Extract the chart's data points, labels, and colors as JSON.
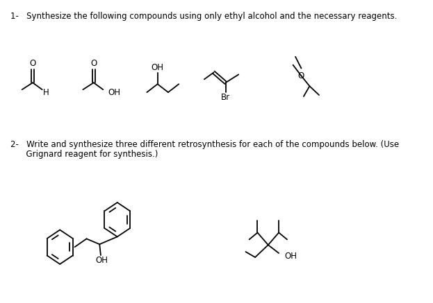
{
  "background_color": "#ffffff",
  "title1": "1-   Synthesize the following compounds using only ethyl alcohol and the necessary reagents.",
  "title2_line1": "2-   Write and synthesize three different retrosynthesis for each of the compounds below. (Use",
  "title2_line2": "      Grignard reagent for synthesis.)",
  "fig_width": 6.23,
  "fig_height": 4.37,
  "dpi": 100
}
